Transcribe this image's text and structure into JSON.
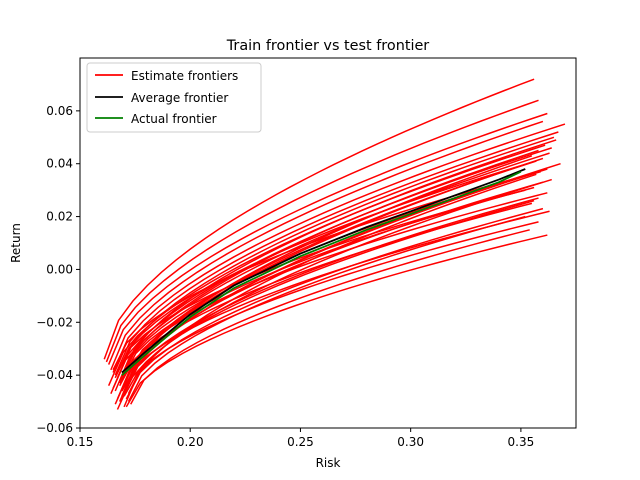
{
  "chart_data": {
    "type": "line",
    "title": "Train frontier vs test frontier",
    "xlabel": "Risk",
    "ylabel": "Return",
    "xlim": [
      0.15,
      0.375
    ],
    "ylim": [
      -0.06,
      0.08
    ],
    "xticks": [
      0.15,
      0.2,
      0.25,
      0.3,
      0.35
    ],
    "xtick_labels": [
      "0.15",
      "0.20",
      "0.25",
      "0.30",
      "0.35"
    ],
    "yticks": [
      -0.06,
      -0.04,
      -0.02,
      0.0,
      0.02,
      0.04,
      0.06
    ],
    "ytick_labels": [
      "−0.06",
      "−0.04",
      "−0.02",
      "0.00",
      "0.02",
      "0.04",
      "0.06"
    ],
    "grid": false,
    "legend_position": "top-left",
    "legend": [
      {
        "label": "Estimate frontiers",
        "color": "#ff0000"
      },
      {
        "label": "Average frontier",
        "color": "#000000"
      },
      {
        "label": "Actual frontier",
        "color": "#008000"
      }
    ],
    "estimate_color": "#ff0000",
    "estimate_frontiers": [
      {
        "x_min": 0.161,
        "x_max": 0.356,
        "y_start": -0.034,
        "y_end": 0.072
      },
      {
        "x_min": 0.162,
        "x_max": 0.358,
        "y_start": -0.035,
        "y_end": 0.064
      },
      {
        "x_min": 0.163,
        "x_max": 0.362,
        "y_start": -0.036,
        "y_end": 0.059
      },
      {
        "x_min": 0.164,
        "x_max": 0.36,
        "y_start": -0.038,
        "y_end": 0.056
      },
      {
        "x_min": 0.165,
        "x_max": 0.37,
        "y_start": -0.039,
        "y_end": 0.055
      },
      {
        "x_min": 0.166,
        "x_max": 0.367,
        "y_start": -0.04,
        "y_end": 0.052
      },
      {
        "x_min": 0.167,
        "x_max": 0.365,
        "y_start": -0.041,
        "y_end": 0.05
      },
      {
        "x_min": 0.168,
        "x_max": 0.366,
        "y_start": -0.043,
        "y_end": 0.049
      },
      {
        "x_min": 0.163,
        "x_max": 0.361,
        "y_start": -0.044,
        "y_end": 0.047
      },
      {
        "x_min": 0.165,
        "x_max": 0.364,
        "y_start": -0.045,
        "y_end": 0.046
      },
      {
        "x_min": 0.166,
        "x_max": 0.358,
        "y_start": -0.046,
        "y_end": 0.045
      },
      {
        "x_min": 0.164,
        "x_max": 0.363,
        "y_start": -0.047,
        "y_end": 0.044
      },
      {
        "x_min": 0.169,
        "x_max": 0.355,
        "y_start": -0.048,
        "y_end": 0.043
      },
      {
        "x_min": 0.167,
        "x_max": 0.36,
        "y_start": -0.049,
        "y_end": 0.042
      },
      {
        "x_min": 0.168,
        "x_max": 0.368,
        "y_start": -0.05,
        "y_end": 0.04
      },
      {
        "x_min": 0.166,
        "x_max": 0.362,
        "y_start": -0.051,
        "y_end": 0.038
      },
      {
        "x_min": 0.17,
        "x_max": 0.357,
        "y_start": -0.052,
        "y_end": 0.036
      },
      {
        "x_min": 0.167,
        "x_max": 0.364,
        "y_start": -0.053,
        "y_end": 0.034
      },
      {
        "x_min": 0.171,
        "x_max": 0.36,
        "y_start": -0.045,
        "y_end": 0.033
      },
      {
        "x_min": 0.169,
        "x_max": 0.356,
        "y_start": -0.042,
        "y_end": 0.031
      },
      {
        "x_min": 0.172,
        "x_max": 0.362,
        "y_start": -0.04,
        "y_end": 0.029
      },
      {
        "x_min": 0.17,
        "x_max": 0.358,
        "y_start": -0.047,
        "y_end": 0.027
      },
      {
        "x_min": 0.168,
        "x_max": 0.355,
        "y_start": -0.044,
        "y_end": 0.025
      },
      {
        "x_min": 0.171,
        "x_max": 0.36,
        "y_start": -0.049,
        "y_end": 0.023
      },
      {
        "x_min": 0.169,
        "x_max": 0.363,
        "y_start": -0.046,
        "y_end": 0.022
      },
      {
        "x_min": 0.172,
        "x_max": 0.352,
        "y_start": -0.05,
        "y_end": 0.02
      },
      {
        "x_min": 0.17,
        "x_max": 0.358,
        "y_start": -0.048,
        "y_end": 0.018
      },
      {
        "x_min": 0.173,
        "x_max": 0.354,
        "y_start": -0.051,
        "y_end": 0.015
      },
      {
        "x_min": 0.171,
        "x_max": 0.362,
        "y_start": -0.052,
        "y_end": 0.013
      },
      {
        "x_min": 0.165,
        "x_max": 0.35,
        "y_start": -0.038,
        "y_end": 0.035
      },
      {
        "x_min": 0.166,
        "x_max": 0.353,
        "y_start": -0.041,
        "y_end": 0.04
      },
      {
        "x_min": 0.168,
        "x_max": 0.359,
        "y_start": -0.043,
        "y_end": 0.037
      },
      {
        "x_min": 0.169,
        "x_max": 0.357,
        "y_start": -0.046,
        "y_end": 0.041
      },
      {
        "x_min": 0.167,
        "x_max": 0.352,
        "y_start": -0.039,
        "y_end": 0.03
      },
      {
        "x_min": 0.172,
        "x_max": 0.356,
        "y_start": -0.047,
        "y_end": 0.026
      }
    ],
    "series": [
      {
        "name": "Average frontier",
        "color": "#000000",
        "x": [
          0.169,
          0.18,
          0.2,
          0.22,
          0.25,
          0.28,
          0.3,
          0.32,
          0.34,
          0.352
        ],
        "values": [
          -0.039,
          -0.031,
          -0.017,
          -0.006,
          0.006,
          0.016,
          0.022,
          0.028,
          0.034,
          0.038
        ]
      },
      {
        "name": "Actual frontier",
        "color": "#008000",
        "x": [
          0.169,
          0.18,
          0.2,
          0.22,
          0.25,
          0.28,
          0.3,
          0.32,
          0.34,
          0.35
        ],
        "values": [
          -0.04,
          -0.032,
          -0.018,
          -0.007,
          0.005,
          0.015,
          0.021,
          0.027,
          0.033,
          0.037
        ]
      }
    ]
  }
}
